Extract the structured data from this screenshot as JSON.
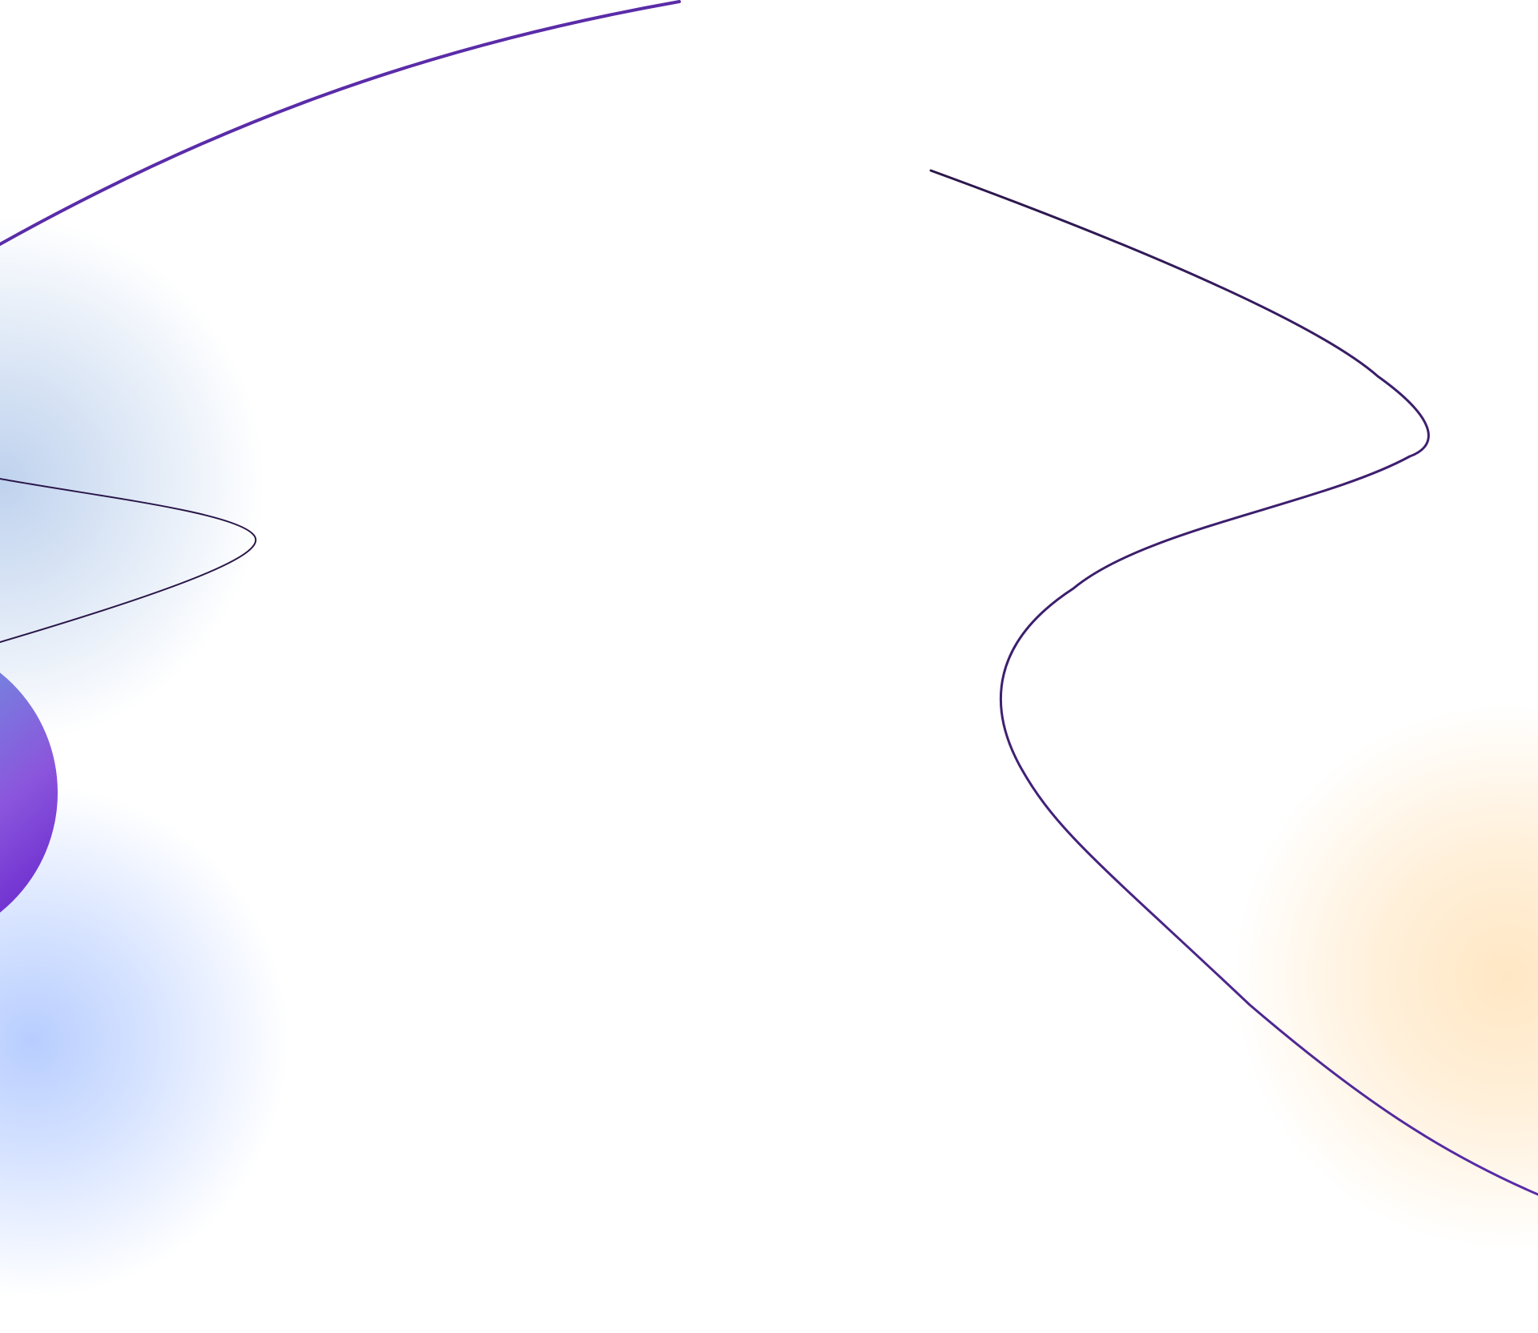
{
  "colors": {
    "background": "#ffffff",
    "glow_blue_soft": "#a9c3e8",
    "glow_blue_strong": "#b4cbff",
    "glow_orange": "#ffe7c4",
    "orb_blue": "#6f8fe0",
    "orb_violet": "#8b56dc",
    "orb_deep": "#6e2fd0",
    "stroke_purple": "#5a2ca8",
    "stroke_deep": "#2a1648"
  },
  "decorations": [
    "blue-glow",
    "orange-glow",
    "gradient-orb",
    "purple-arc",
    "loop-curve",
    "wave-curve"
  ]
}
